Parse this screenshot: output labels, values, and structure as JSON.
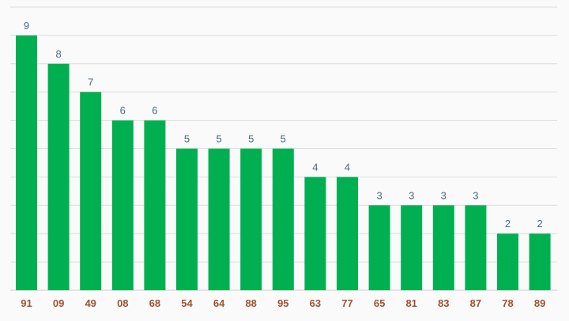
{
  "chart_data": {
    "type": "bar",
    "categories": [
      "91",
      "09",
      "49",
      "08",
      "68",
      "54",
      "64",
      "88",
      "95",
      "63",
      "77",
      "65",
      "81",
      "83",
      "87",
      "78",
      "89"
    ],
    "values": [
      9,
      8,
      7,
      6,
      6,
      5,
      5,
      5,
      5,
      4,
      4,
      3,
      3,
      3,
      3,
      2,
      2
    ],
    "ylim": [
      0,
      10
    ],
    "grid": true,
    "colors": {
      "bar": "#00b050",
      "value_label": "#4a6b80",
      "tick_label": "#a0522d",
      "grid": "#dcdcdc"
    }
  }
}
